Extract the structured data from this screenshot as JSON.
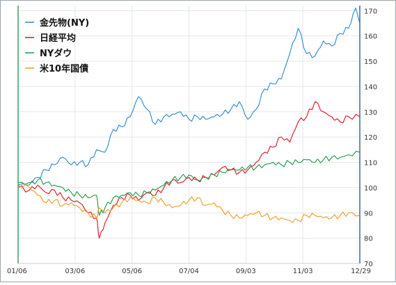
{
  "chart_data": {
    "type": "line",
    "x_ticks": [
      "01/06",
      "03/06",
      "05/06",
      "07/04",
      "09/03",
      "11/03",
      "12/29"
    ],
    "y_ticks": [
      70,
      80,
      90,
      100,
      110,
      120,
      130,
      140,
      150,
      160,
      170
    ],
    "ylim": [
      70,
      172
    ],
    "grid": true,
    "legend_position": "top-left",
    "series": [
      {
        "name": "金先物(NY)",
        "color": "#3a8fd0",
        "x": [
          0,
          8,
          14,
          20,
          26,
          32,
          38,
          44,
          50,
          56,
          62,
          68,
          74,
          80,
          86,
          92,
          98,
          104,
          110,
          116,
          122,
          128,
          134,
          140,
          146,
          152,
          158,
          164,
          170,
          176,
          182,
          188,
          194,
          200,
          206,
          212,
          218,
          224,
          230,
          236,
          241,
          244
        ],
        "y": [
          101,
          102,
          104,
          107,
          109,
          112,
          109,
          110,
          109,
          115,
          114,
          123,
          124,
          128,
          136,
          131,
          125,
          128,
          129,
          130,
          127,
          128,
          127,
          128,
          129,
          131,
          134,
          127,
          131,
          139,
          141,
          143,
          153,
          163,
          153,
          152,
          158,
          156,
          161,
          163,
          171,
          165
        ]
      },
      {
        "name": "日経平均",
        "color": "#e02030",
        "x": [
          0,
          8,
          14,
          20,
          26,
          32,
          38,
          44,
          50,
          56,
          58,
          62,
          68,
          74,
          80,
          86,
          92,
          98,
          104,
          110,
          116,
          122,
          128,
          134,
          140,
          146,
          152,
          158,
          164,
          170,
          176,
          182,
          188,
          194,
          200,
          206,
          212,
          218,
          224,
          230,
          236,
          244
        ],
        "y": [
          100,
          99,
          101,
          98,
          99,
          96,
          95,
          94,
          90,
          88,
          80,
          86,
          93,
          96,
          97,
          95,
          98,
          97,
          100,
          103,
          102,
          104,
          103,
          104,
          105,
          108,
          107,
          106,
          107,
          110,
          114,
          116,
          120,
          118,
          126,
          128,
          134,
          130,
          128,
          126,
          128,
          128
        ]
      },
      {
        "name": "NYダウ",
        "color": "#28a050",
        "x": [
          0,
          8,
          14,
          20,
          26,
          32,
          38,
          44,
          50,
          56,
          58,
          62,
          68,
          74,
          80,
          86,
          92,
          98,
          104,
          110,
          116,
          122,
          128,
          134,
          140,
          146,
          152,
          158,
          164,
          170,
          176,
          182,
          188,
          194,
          200,
          206,
          212,
          218,
          224,
          230,
          236,
          244
        ],
        "y": [
          102,
          101,
          103,
          102,
          101,
          100,
          98,
          97,
          96,
          97,
          89,
          92,
          96,
          97,
          98,
          97,
          98,
          99,
          101,
          103,
          104,
          105,
          103,
          104,
          105,
          106,
          107,
          107,
          108,
          108,
          109,
          110,
          109,
          110,
          110,
          111,
          110,
          111,
          112,
          112,
          113,
          114
        ]
      },
      {
        "name": "米10年国債",
        "color": "#f0a030",
        "x": [
          0,
          8,
          14,
          20,
          26,
          32,
          38,
          44,
          50,
          56,
          58,
          62,
          68,
          74,
          80,
          86,
          92,
          98,
          104,
          110,
          116,
          122,
          128,
          134,
          140,
          146,
          152,
          158,
          164,
          170,
          176,
          182,
          188,
          194,
          200,
          206,
          212,
          218,
          224,
          230,
          236,
          244
        ],
        "y": [
          101,
          100,
          97,
          94,
          95,
          93,
          94,
          92,
          90,
          88,
          92,
          90,
          92,
          94,
          96,
          95,
          94,
          96,
          94,
          92,
          93,
          95,
          96,
          93,
          94,
          91,
          89,
          88,
          89,
          90,
          89,
          88,
          88,
          87,
          87,
          89,
          89,
          88,
          88,
          89,
          90,
          89
        ]
      }
    ]
  }
}
